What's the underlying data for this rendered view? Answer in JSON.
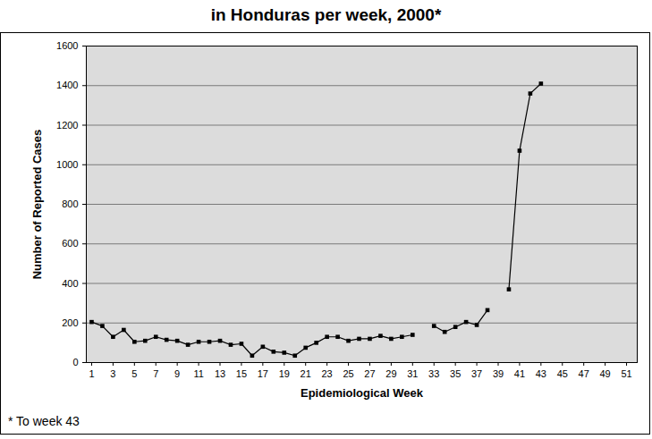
{
  "chart_data": {
    "type": "line",
    "title": "in Honduras per week, 2000*",
    "x_label": "Epidemiological Week",
    "y_label": "Number of Reported Cases",
    "annotations": [
      "* To week 43"
    ],
    "x": [
      1,
      2,
      3,
      4,
      5,
      6,
      7,
      8,
      9,
      10,
      11,
      12,
      13,
      14,
      15,
      16,
      17,
      18,
      19,
      20,
      21,
      22,
      23,
      24,
      25,
      26,
      27,
      28,
      29,
      30,
      31,
      32,
      33,
      34,
      35,
      36,
      37,
      38,
      39,
      40,
      41,
      42,
      43
    ],
    "values": [
      205,
      185,
      130,
      165,
      105,
      110,
      130,
      115,
      110,
      90,
      105,
      105,
      110,
      90,
      95,
      35,
      80,
      55,
      50,
      35,
      75,
      100,
      130,
      130,
      110,
      120,
      120,
      135,
      120,
      130,
      140,
      null,
      185,
      155,
      180,
      205,
      190,
      265,
      null,
      370,
      1071,
      1360,
      1410
    ],
    "color": "#000000",
    "marker": "square",
    "xlim": [
      0.5,
      52
    ],
    "xticks": [
      1,
      3,
      5,
      7,
      9,
      11,
      13,
      15,
      17,
      19,
      21,
      23,
      25,
      27,
      29,
      31,
      33,
      35,
      37,
      39,
      41,
      43,
      45,
      47,
      49,
      51
    ],
    "ylim": [
      0,
      1600
    ],
    "yticks": [
      0,
      200,
      400,
      600,
      800,
      1000,
      1200,
      1400,
      1600
    ],
    "grid": true
  }
}
